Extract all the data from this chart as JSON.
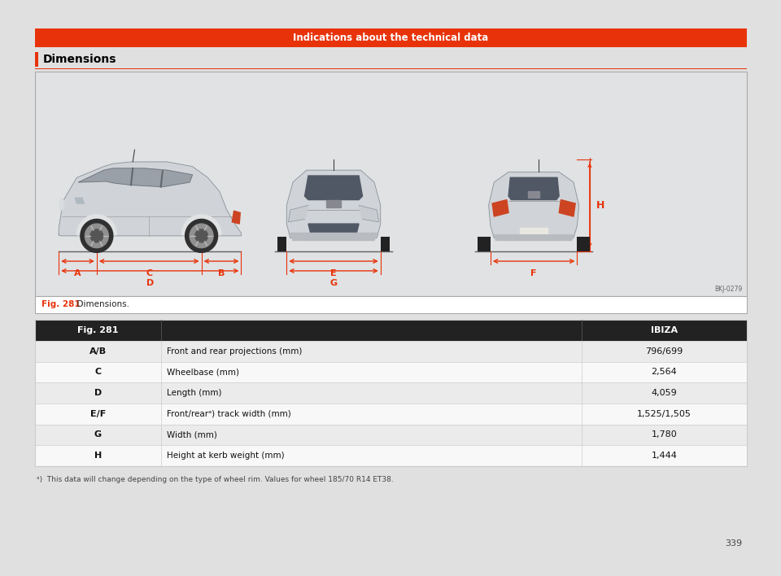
{
  "page_bg": "#e0e0e0",
  "content_bg": "#ffffff",
  "header_text": "Indications about the technical data",
  "header_bg": "#e8330a",
  "header_text_color": "#ffffff",
  "section_title": "Dimensions",
  "section_bar_color": "#e8330a",
  "fig_caption": "Fig. 281",
  "fig_caption_color": "#e8330a",
  "fig_caption_text": "  Dimensions.",
  "diagram_bg": "#e0e2e4",
  "diagram_border": "#aaaaaa",
  "table_header_bg": "#222222",
  "table_header_text": "#ffffff",
  "table_alt_bg": "#ebebeb",
  "table_row_bg": "#f8f8f8",
  "table_border": "#cccccc",
  "col1_header": "Fig. 281",
  "col3_header": "IBIZA",
  "rows": [
    {
      "label": "A/B",
      "desc": "Front and rear projections (mm)",
      "value": "796/699"
    },
    {
      "label": "C",
      "desc": "Wheelbase (mm)",
      "value": "2,564"
    },
    {
      "label": "D",
      "desc": "Length (mm)",
      "value": "4,059"
    },
    {
      "label": "E/F",
      "desc": "Front/rearᵃ) track width (mm)",
      "value": "1,525/1,505"
    },
    {
      "label": "G",
      "desc": "Width (mm)",
      "value": "1,780"
    },
    {
      "label": "H",
      "desc": "Height at kerb weight (mm)",
      "value": "1,444"
    }
  ],
  "footnote": "ᵃ)  This data will change depending on the type of wheel rim. Values for wheel 185/70 R14 ET38.",
  "page_number": "339",
  "arrow_color": "#e8330a",
  "diagram_code": "BKJ-0279"
}
